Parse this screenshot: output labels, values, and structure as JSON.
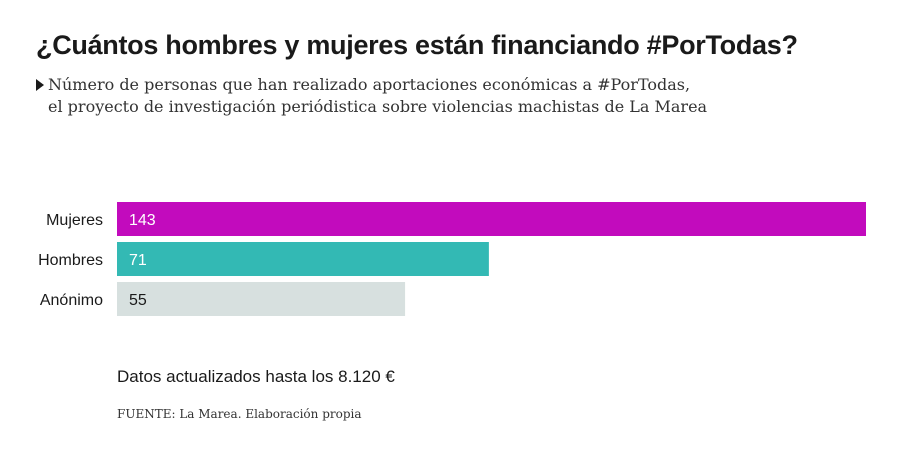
{
  "title": "¿Cuántos hombres y mujeres están financiando #PorTodas?",
  "subtitle_line1": "Número de personas que han realizado aportaciones económicas a #PorTodas,",
  "subtitle_line2": "el proyecto de investigación periódistica sobre violencias machistas de La Marea",
  "note": "Datos actualizados hasta los 8.120 €",
  "source": "FUENTE: La Marea. Elaboración propia",
  "chart_data": {
    "type": "bar",
    "orientation": "horizontal",
    "categories": [
      "Mujeres",
      "Hombres",
      "Anónimo"
    ],
    "values": [
      143,
      71,
      55
    ],
    "colors": [
      "#c20bbd",
      "#33b9b4",
      "#d7e0df"
    ],
    "label_colors": [
      "#ffffff",
      "#ffffff",
      "#1a1a1a"
    ],
    "xlim": [
      0,
      143
    ],
    "grid": false,
    "legend": "none"
  }
}
